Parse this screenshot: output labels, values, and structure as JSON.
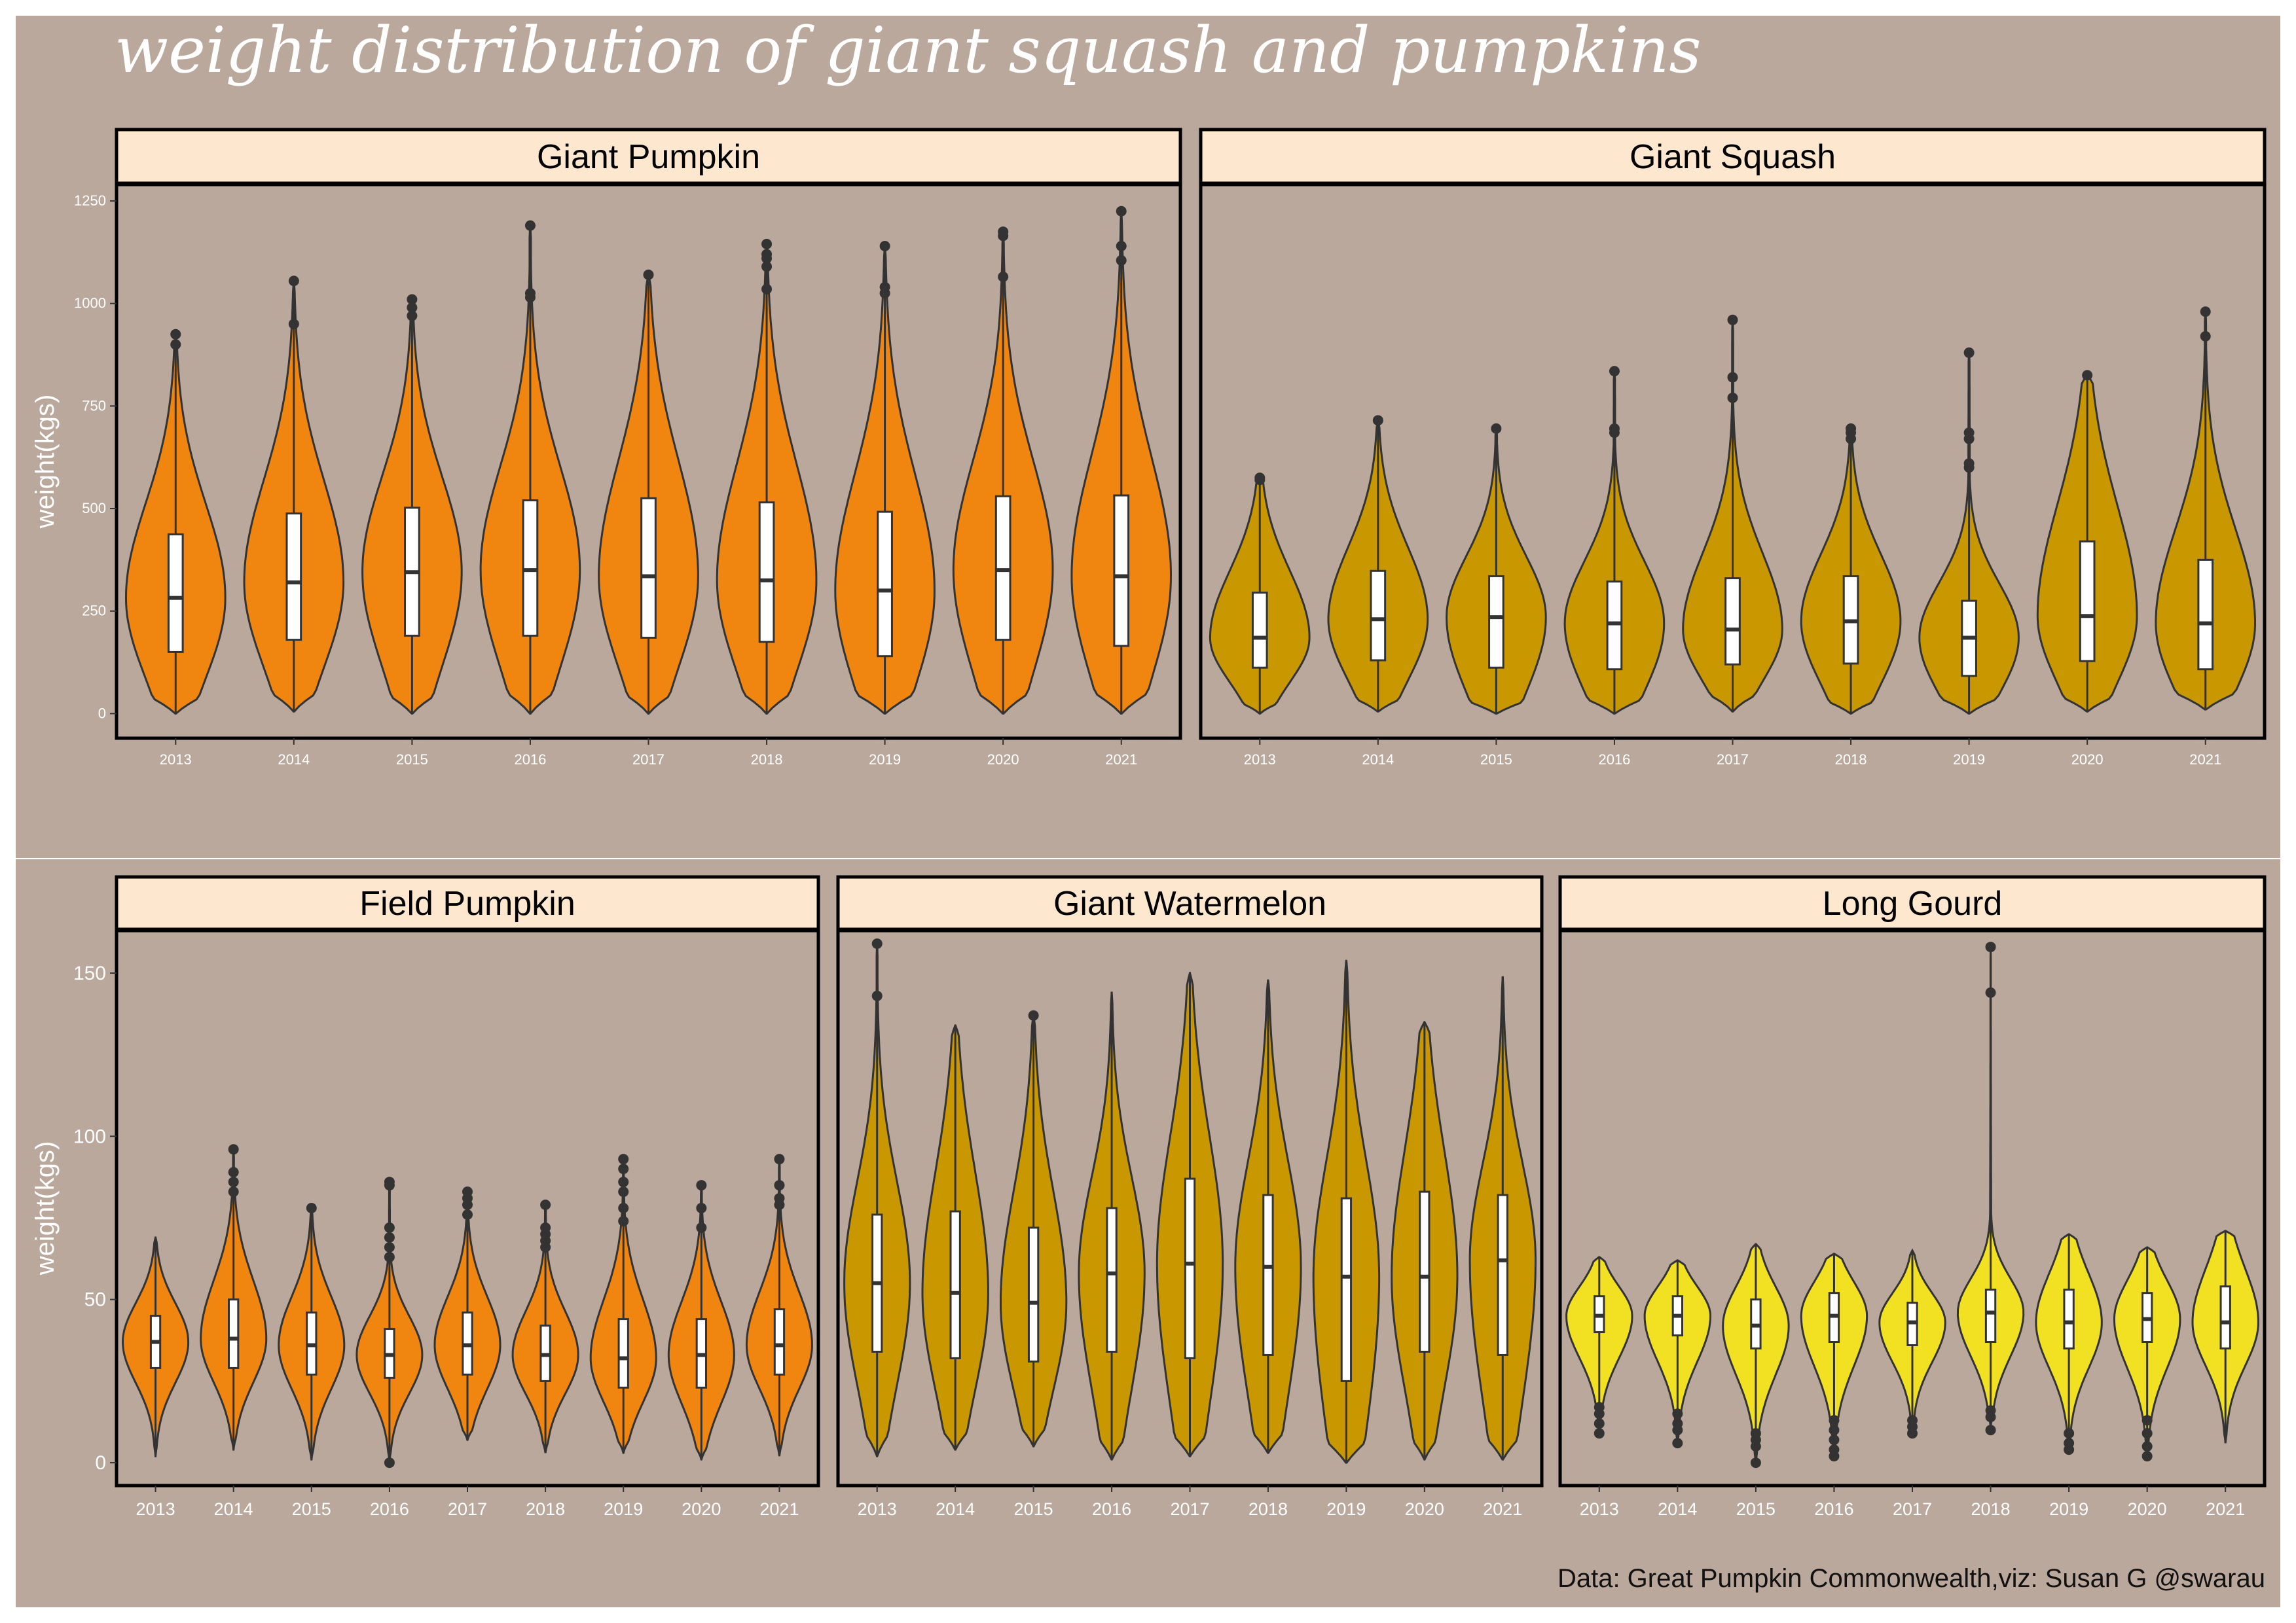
{
  "title": "weight distribution of giant squash and pumpkins",
  "caption": "Data: Great Pumpkin Commonwealth,viz: Susan G @swarau",
  "colors": {
    "background": "#b9a89b",
    "strip_fill": "#fde8cf",
    "outline": "#333333",
    "orange": "#f0850f",
    "mustard": "#c99700",
    "yellow": "#f2e122",
    "text_light": "#ffffff"
  },
  "chart_data": [
    {
      "type": "violin",
      "facet": "Giant Pumpkin",
      "ylabel": "weight(kgs)",
      "ylim": [
        -60,
        1290
      ],
      "yticks": [
        0,
        250,
        500,
        750,
        1000,
        1250
      ],
      "categories": [
        "2013",
        "2014",
        "2015",
        "2016",
        "2017",
        "2018",
        "2019",
        "2020",
        "2021"
      ],
      "color": "orange",
      "series": [
        {
          "year": "2013",
          "min": 0,
          "q1": 150,
          "median": 282,
          "q3": 437,
          "max": 925,
          "outliers": [
            900,
            925
          ]
        },
        {
          "year": "2014",
          "min": 5,
          "q1": 180,
          "median": 320,
          "q3": 488,
          "max": 1055,
          "outliers": [
            950,
            1055
          ]
        },
        {
          "year": "2015",
          "min": 0,
          "q1": 190,
          "median": 345,
          "q3": 502,
          "max": 1010,
          "outliers": [
            970,
            990,
            1010
          ]
        },
        {
          "year": "2016",
          "min": 0,
          "q1": 190,
          "median": 350,
          "q3": 520,
          "max": 1190,
          "outliers": [
            1015,
            1025,
            1190
          ]
        },
        {
          "year": "2017",
          "min": 0,
          "q1": 185,
          "median": 335,
          "q3": 525,
          "max": 1070,
          "outliers": [
            1070
          ]
        },
        {
          "year": "2018",
          "min": 0,
          "q1": 175,
          "median": 325,
          "q3": 515,
          "max": 1145,
          "outliers": [
            1035,
            1090,
            1110,
            1120,
            1145
          ]
        },
        {
          "year": "2019",
          "min": 0,
          "q1": 140,
          "median": 300,
          "q3": 492,
          "max": 1140,
          "outliers": [
            1025,
            1040,
            1140
          ]
        },
        {
          "year": "2020",
          "min": 0,
          "q1": 180,
          "median": 350,
          "q3": 530,
          "max": 1175,
          "outliers": [
            1065,
            1165,
            1175
          ]
        },
        {
          "year": "2021",
          "min": 0,
          "q1": 165,
          "median": 335,
          "q3": 532,
          "max": 1225,
          "outliers": [
            1105,
            1140,
            1225
          ]
        }
      ]
    },
    {
      "type": "violin",
      "facet": "Giant Squash",
      "ylabel": "",
      "ylim": [
        -60,
        1290
      ],
      "yticks": [],
      "categories": [
        "2013",
        "2014",
        "2015",
        "2016",
        "2017",
        "2018",
        "2019",
        "2020",
        "2021"
      ],
      "color": "mustard",
      "series": [
        {
          "year": "2013",
          "min": 0,
          "q1": 112,
          "median": 185,
          "q3": 295,
          "max": 575,
          "outliers": [
            570,
            575
          ]
        },
        {
          "year": "2014",
          "min": 5,
          "q1": 130,
          "median": 230,
          "q3": 348,
          "max": 715,
          "outliers": [
            715
          ]
        },
        {
          "year": "2015",
          "min": 0,
          "q1": 112,
          "median": 235,
          "q3": 335,
          "max": 695,
          "outliers": [
            695
          ]
        },
        {
          "year": "2016",
          "min": 0,
          "q1": 108,
          "median": 220,
          "q3": 322,
          "max": 835,
          "outliers": [
            685,
            695,
            835
          ]
        },
        {
          "year": "2017",
          "min": 5,
          "q1": 120,
          "median": 205,
          "q3": 330,
          "max": 960,
          "outliers": [
            770,
            820,
            960
          ]
        },
        {
          "year": "2018",
          "min": 0,
          "q1": 122,
          "median": 225,
          "q3": 335,
          "max": 695,
          "outliers": [
            670,
            685,
            695
          ]
        },
        {
          "year": "2019",
          "min": 0,
          "q1": 92,
          "median": 185,
          "q3": 275,
          "max": 880,
          "outliers": [
            600,
            610,
            670,
            685,
            880
          ]
        },
        {
          "year": "2020",
          "min": 5,
          "q1": 128,
          "median": 238,
          "q3": 420,
          "max": 825,
          "outliers": [
            825
          ]
        },
        {
          "year": "2021",
          "min": 10,
          "q1": 108,
          "median": 220,
          "q3": 375,
          "max": 980,
          "outliers": [
            920,
            980
          ]
        }
      ]
    },
    {
      "type": "violin",
      "facet": "Field Pumpkin",
      "ylabel": "weight(kgs)",
      "ylim": [
        -7,
        163
      ],
      "yticks": [
        0,
        50,
        100,
        150
      ],
      "categories": [
        "2013",
        "2014",
        "2015",
        "2016",
        "2017",
        "2018",
        "2019",
        "2020",
        "2021"
      ],
      "color": "orange",
      "series": [
        {
          "year": "2013",
          "min": 2,
          "q1": 29,
          "median": 37,
          "q3": 45,
          "max": 69,
          "outliers": []
        },
        {
          "year": "2014",
          "min": 4,
          "q1": 29,
          "median": 38,
          "q3": 50,
          "max": 96,
          "outliers": [
            83,
            86,
            89,
            96
          ]
        },
        {
          "year": "2015",
          "min": 1,
          "q1": 27,
          "median": 36,
          "q3": 46,
          "max": 78,
          "outliers": [
            78
          ]
        },
        {
          "year": "2016",
          "min": 0,
          "q1": 26,
          "median": 33,
          "q3": 41,
          "max": 86,
          "outliers": [
            63,
            66,
            69,
            72,
            85,
            86,
            0
          ]
        },
        {
          "year": "2017",
          "min": 7,
          "q1": 27,
          "median": 36,
          "q3": 46,
          "max": 83,
          "outliers": [
            76,
            79,
            81,
            83
          ]
        },
        {
          "year": "2018",
          "min": 3,
          "q1": 25,
          "median": 33,
          "q3": 42,
          "max": 79,
          "outliers": [
            66,
            68,
            70,
            72,
            79
          ]
        },
        {
          "year": "2019",
          "min": 3,
          "q1": 23,
          "median": 32,
          "q3": 44,
          "max": 93,
          "outliers": [
            74,
            78,
            83,
            86,
            90,
            93
          ]
        },
        {
          "year": "2020",
          "min": 1,
          "q1": 23,
          "median": 33,
          "q3": 44,
          "max": 85,
          "outliers": [
            72,
            78,
            85
          ]
        },
        {
          "year": "2021",
          "min": 2,
          "q1": 27,
          "median": 36,
          "q3": 47,
          "max": 93,
          "outliers": [
            79,
            81,
            85,
            93
          ]
        }
      ]
    },
    {
      "type": "violin",
      "facet": "Giant Watermelon",
      "ylabel": "",
      "ylim": [
        -7,
        163
      ],
      "yticks": [],
      "categories": [
        "2013",
        "2014",
        "2015",
        "2016",
        "2017",
        "2018",
        "2019",
        "2020",
        "2021"
      ],
      "color": "mustard",
      "series": [
        {
          "year": "2013",
          "min": 2,
          "q1": 34,
          "median": 55,
          "q3": 76,
          "max": 159,
          "outliers": [
            143,
            159
          ]
        },
        {
          "year": "2014",
          "min": 4,
          "q1": 32,
          "median": 52,
          "q3": 77,
          "max": 134,
          "outliers": []
        },
        {
          "year": "2015",
          "min": 5,
          "q1": 31,
          "median": 49,
          "q3": 72,
          "max": 137,
          "outliers": [
            137
          ]
        },
        {
          "year": "2016",
          "min": 1,
          "q1": 34,
          "median": 58,
          "q3": 78,
          "max": 144,
          "outliers": []
        },
        {
          "year": "2017",
          "min": 2,
          "q1": 32,
          "median": 61,
          "q3": 87,
          "max": 150,
          "outliers": []
        },
        {
          "year": "2018",
          "min": 3,
          "q1": 33,
          "median": 60,
          "q3": 82,
          "max": 148,
          "outliers": []
        },
        {
          "year": "2019",
          "min": 0,
          "q1": 25,
          "median": 57,
          "q3": 81,
          "max": 154,
          "outliers": []
        },
        {
          "year": "2020",
          "min": 1,
          "q1": 34,
          "median": 57,
          "q3": 83,
          "max": 135,
          "outliers": []
        },
        {
          "year": "2021",
          "min": 1,
          "q1": 33,
          "median": 62,
          "q3": 82,
          "max": 149,
          "outliers": []
        }
      ]
    },
    {
      "type": "violin",
      "facet": "Long Gourd",
      "ylabel": "",
      "ylim": [
        -7,
        163
      ],
      "yticks": [],
      "categories": [
        "2013",
        "2014",
        "2015",
        "2016",
        "2017",
        "2018",
        "2019",
        "2020",
        "2021"
      ],
      "color": "yellow",
      "series": [
        {
          "year": "2013",
          "min": 9,
          "q1": 40,
          "median": 45,
          "q3": 51,
          "max": 63,
          "outliers": [
            9,
            12,
            15,
            17
          ]
        },
        {
          "year": "2014",
          "min": 6,
          "q1": 39,
          "median": 45,
          "q3": 51,
          "max": 62,
          "outliers": [
            6,
            10,
            12,
            15
          ]
        },
        {
          "year": "2015",
          "min": 0,
          "q1": 35,
          "median": 42,
          "q3": 50,
          "max": 67,
          "outliers": [
            0,
            5,
            7,
            9
          ]
        },
        {
          "year": "2016",
          "min": 2,
          "q1": 37,
          "median": 45,
          "q3": 52,
          "max": 64,
          "outliers": [
            2,
            4,
            7,
            10,
            13
          ]
        },
        {
          "year": "2017",
          "min": 9,
          "q1": 36,
          "median": 43,
          "q3": 49,
          "max": 65,
          "outliers": [
            9,
            11,
            13
          ]
        },
        {
          "year": "2018",
          "min": 10,
          "q1": 37,
          "median": 46,
          "q3": 53,
          "max": 158,
          "outliers": [
            10,
            14,
            16,
            144,
            158
          ]
        },
        {
          "year": "2019",
          "min": 4,
          "q1": 35,
          "median": 43,
          "q3": 53,
          "max": 70,
          "outliers": [
            4,
            6,
            9
          ]
        },
        {
          "year": "2020",
          "min": 2,
          "q1": 37,
          "median": 44,
          "q3": 52,
          "max": 66,
          "outliers": [
            2,
            5,
            9,
            13
          ]
        },
        {
          "year": "2021",
          "min": 6,
          "q1": 35,
          "median": 43,
          "q3": 54,
          "max": 71,
          "outliers": []
        }
      ]
    }
  ]
}
